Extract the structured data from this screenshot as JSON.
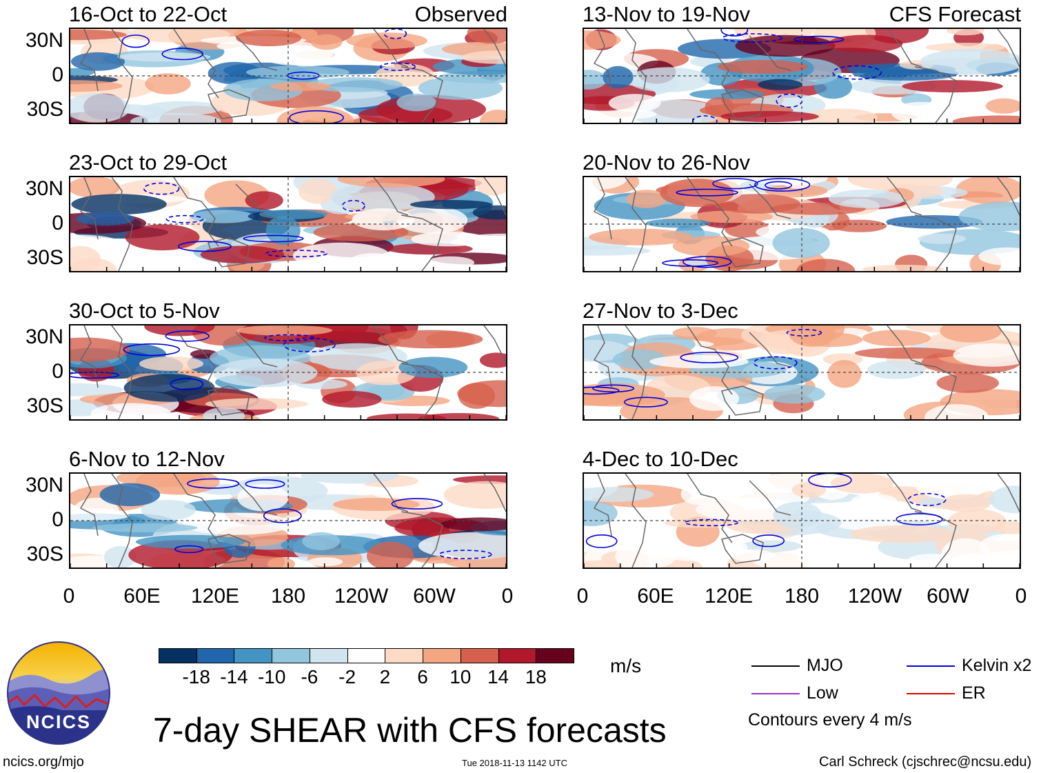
{
  "chart_data": {
    "type": "heatmap",
    "title": "7-day SHEAR with CFS forecasts",
    "variable": "SHEAR",
    "units": "m/s",
    "colorbar": {
      "ticks": [
        "-18",
        "-14",
        "-10",
        "-6",
        "-2",
        "2",
        "6",
        "10",
        "14",
        "18"
      ],
      "colors": [
        "#053061",
        "#2166ac",
        "#4393c3",
        "#92c5de",
        "#d1e5f0",
        "#ffffff",
        "#fddbc7",
        "#f4a582",
        "#d6604d",
        "#b2182b",
        "#67001f"
      ]
    },
    "x_ticks": [
      "0",
      "60E",
      "120E",
      "180",
      "120W",
      "60W",
      "0"
    ],
    "y_ticks": [
      "30N",
      "0",
      "30S"
    ],
    "observed_label": "Observed",
    "forecast_label": "CFS Forecast",
    "panels": [
      {
        "title": "16-Oct to 22-Oct",
        "kind": "observed"
      },
      {
        "title": "23-Oct to 29-Oct",
        "kind": "observed"
      },
      {
        "title": "30-Oct to 5-Nov",
        "kind": "observed"
      },
      {
        "title": "6-Nov to 12-Nov",
        "kind": "observed"
      },
      {
        "title": "13-Nov to 19-Nov",
        "kind": "forecast"
      },
      {
        "title": "20-Nov to 26-Nov",
        "kind": "forecast"
      },
      {
        "title": "27-Nov to 3-Dec",
        "kind": "forecast"
      },
      {
        "title": "4-Dec to 10-Dec",
        "kind": "forecast"
      }
    ],
    "legend": [
      {
        "label": "MJO",
        "color": "#000000"
      },
      {
        "label": "Kelvin x2",
        "color": "#0000dd"
      },
      {
        "label": "Low",
        "color": "#9932cc"
      },
      {
        "label": "ER",
        "color": "#dd0000"
      }
    ],
    "contour_note": "Contours every 4 m/s"
  },
  "footer": {
    "logo_text": "NCICS",
    "site": "ncics.org/mjo",
    "timestamp": "Tue 2018-11-13 1142 UTC",
    "credit": "Carl Schreck (cjschrec@ncsu.edu)"
  }
}
